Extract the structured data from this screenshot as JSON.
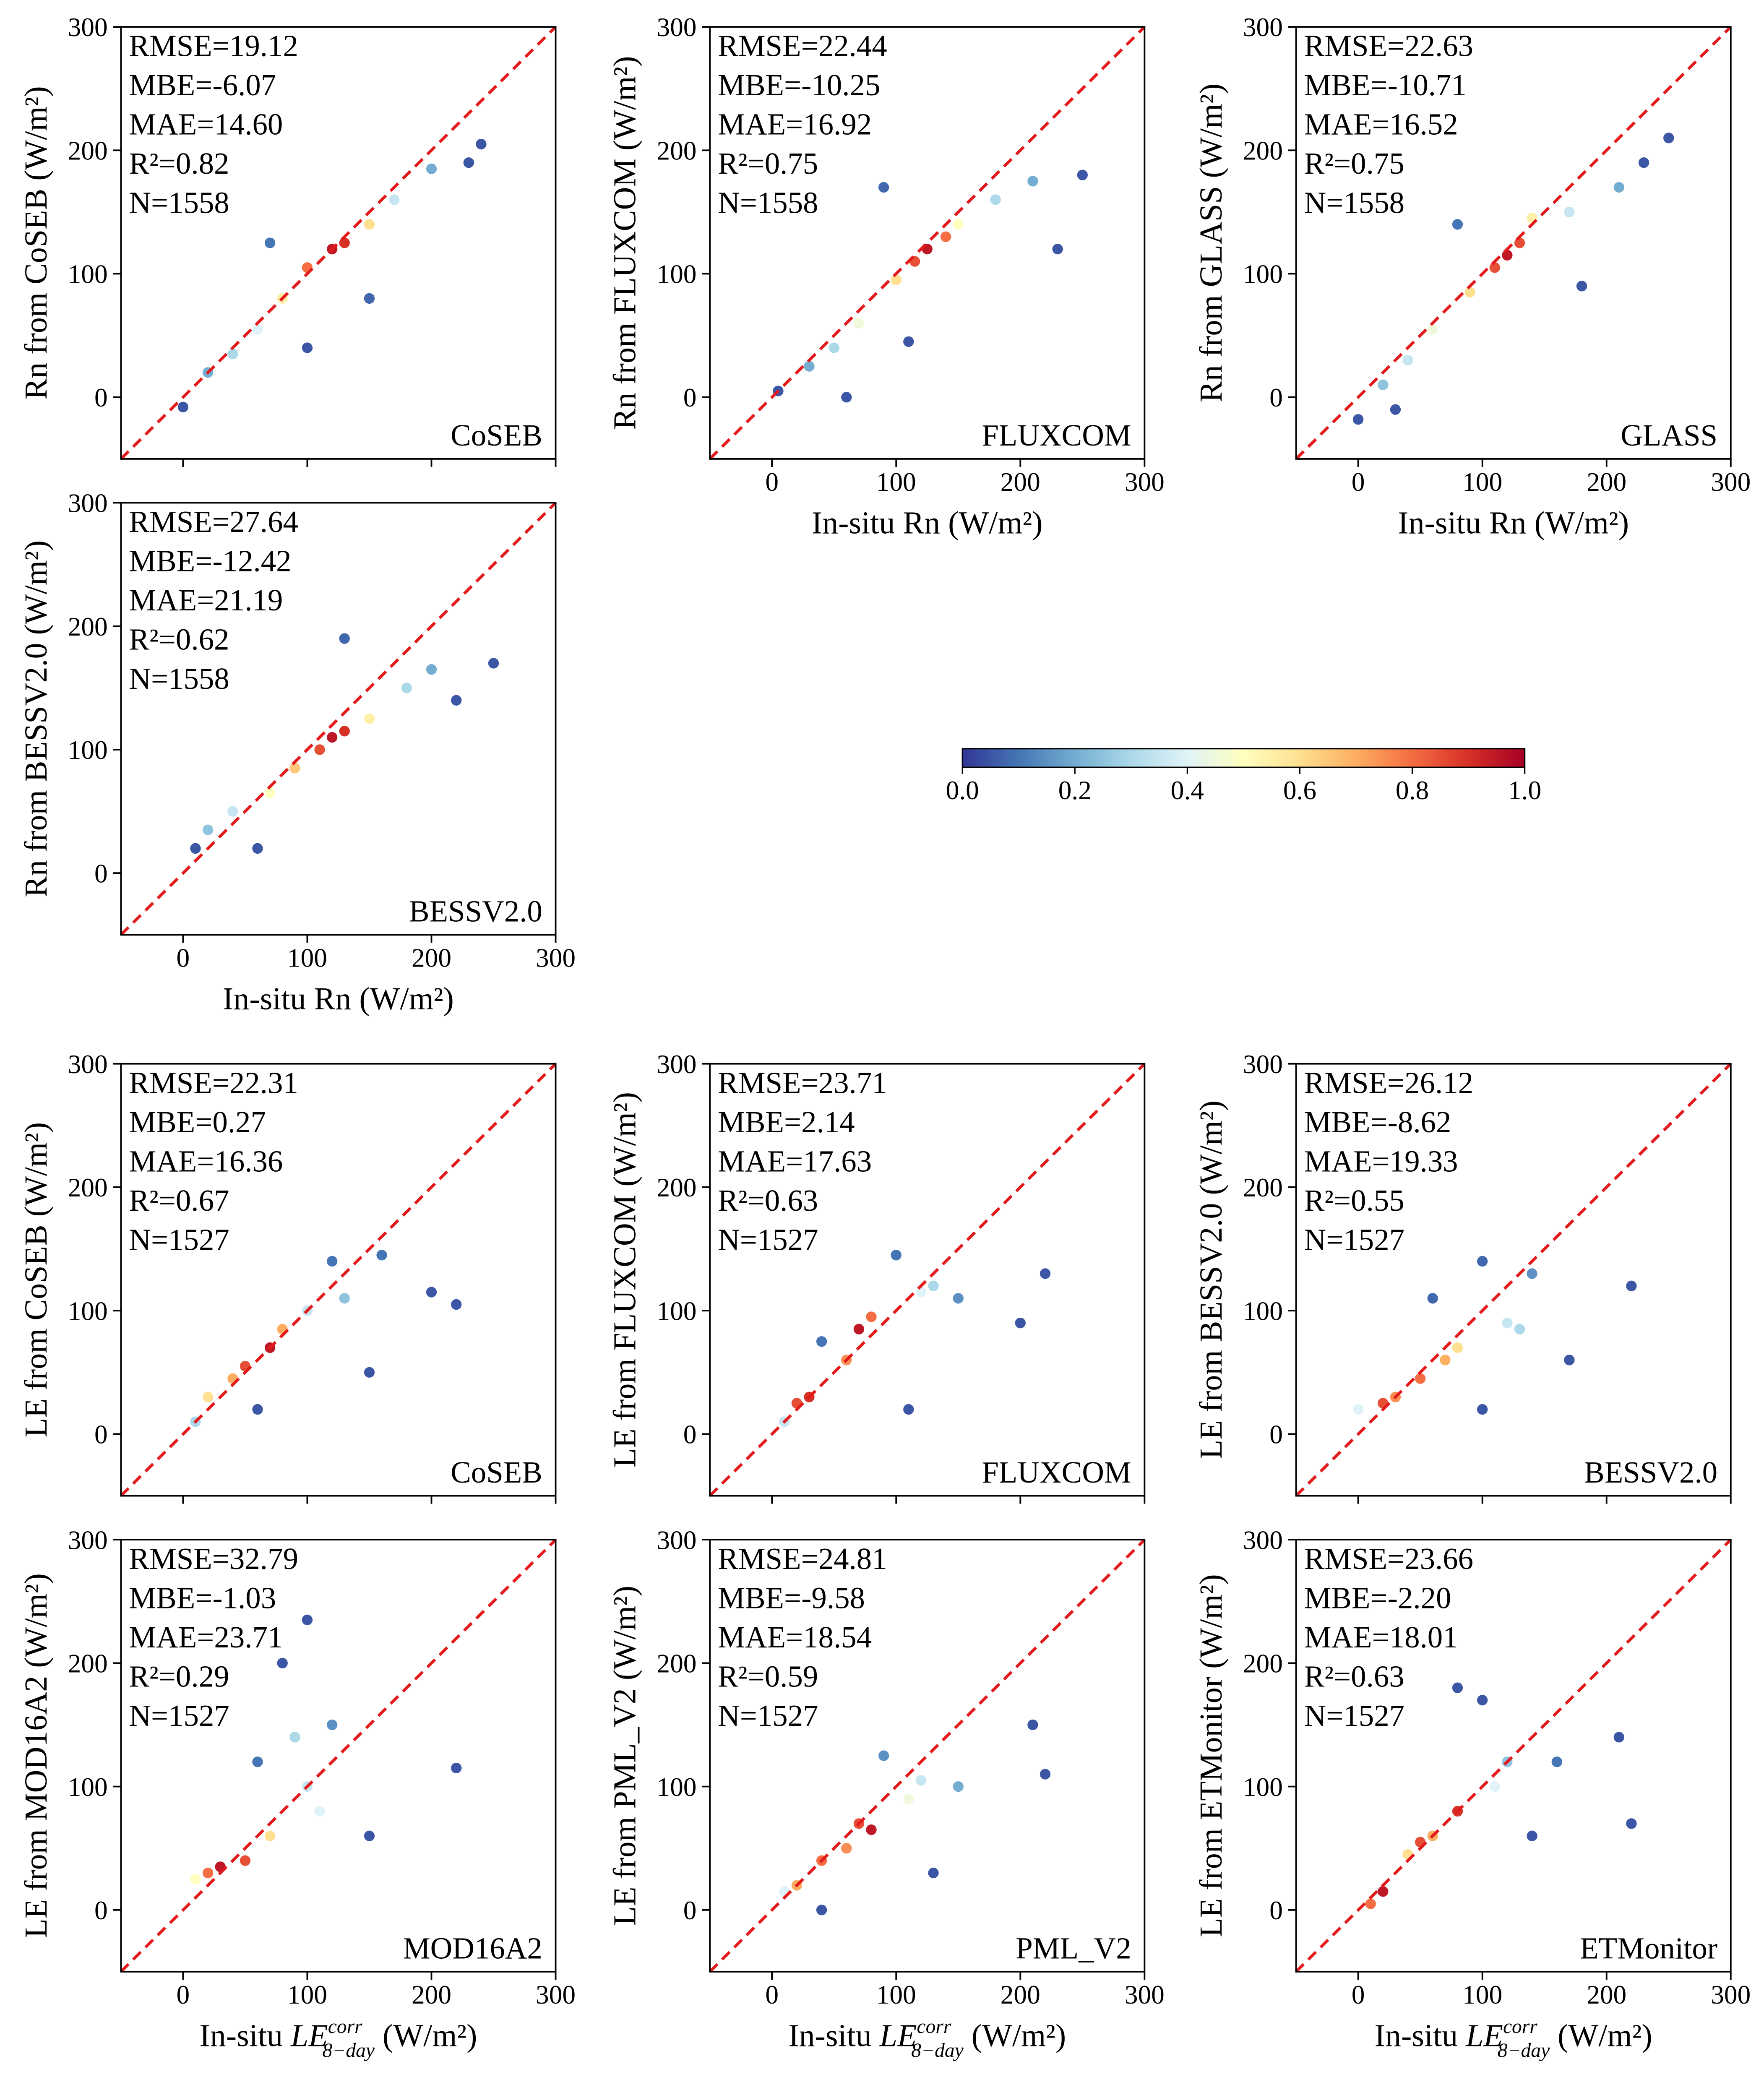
{
  "chart_data": [
    {
      "type": "scatter",
      "ylabel": "Rn from CoSEB (W/m²)",
      "label": "CoSEB",
      "stats": [
        "RMSE=19.12",
        "MBE=-6.07",
        "MAE=14.60",
        "R²=0.82",
        "N=1558"
      ],
      "xlim": [
        -50,
        300
      ],
      "ylim": [
        -50,
        300
      ],
      "xticks": [
        0,
        100,
        200,
        300
      ],
      "yticks": [
        0,
        100,
        200,
        300
      ],
      "xticklabels": false,
      "x": [
        0,
        100,
        150,
        230,
        240,
        70,
        20,
        40,
        170,
        200,
        60,
        80,
        150,
        100,
        120,
        130
      ],
      "y": [
        -8,
        40,
        80,
        190,
        205,
        125,
        20,
        35,
        160,
        185,
        55,
        80,
        140,
        105,
        120,
        125
      ],
      "density": [
        0.05,
        0.05,
        0.08,
        0.05,
        0.05,
        0.1,
        0.2,
        0.3,
        0.35,
        0.2,
        0.4,
        0.55,
        0.6,
        0.8,
        0.95,
        0.9
      ]
    },
    {
      "type": "scatter",
      "ylabel": "Rn from FLUXCOM (W/m²)",
      "xlabel": "In-situ Rn (W/m²)",
      "label": "FLUXCOM",
      "stats": [
        "RMSE=22.44",
        "MBE=-10.25",
        "MAE=16.92",
        "R²=0.75",
        "N=1558"
      ],
      "xlim": [
        -50,
        300
      ],
      "ylim": [
        -50,
        300
      ],
      "xticks": [
        0,
        100,
        200,
        300
      ],
      "yticks": [
        0,
        100,
        200,
        300
      ],
      "xticklabels": true,
      "x": [
        5,
        60,
        110,
        230,
        250,
        90,
        30,
        50,
        180,
        210,
        70,
        100,
        150,
        115,
        125,
        140
      ],
      "y": [
        5,
        0,
        45,
        120,
        180,
        170,
        25,
        40,
        160,
        175,
        60,
        95,
        140,
        110,
        120,
        130
      ],
      "density": [
        0.05,
        0.05,
        0.05,
        0.05,
        0.05,
        0.08,
        0.2,
        0.3,
        0.3,
        0.2,
        0.45,
        0.6,
        0.5,
        0.85,
        0.95,
        0.8
      ]
    },
    {
      "type": "scatter",
      "ylabel": "Rn from GLASS (W/m²)",
      "xlabel": "In-situ Rn (W/m²)",
      "label": "GLASS",
      "stats": [
        "RMSE=22.63",
        "MBE=-10.71",
        "MAE=16.52",
        "R²=0.75",
        "N=1558"
      ],
      "xlim": [
        -50,
        300
      ],
      "ylim": [
        -50,
        300
      ],
      "xticks": [
        0,
        100,
        200,
        300
      ],
      "yticks": [
        0,
        100,
        200,
        300
      ],
      "xticklabels": true,
      "x": [
        0,
        30,
        180,
        250,
        230,
        80,
        20,
        40,
        170,
        210,
        60,
        90,
        140,
        110,
        120,
        130
      ],
      "y": [
        -18,
        -10,
        90,
        210,
        190,
        140,
        10,
        30,
        150,
        170,
        55,
        85,
        145,
        105,
        115,
        125
      ],
      "density": [
        0.05,
        0.05,
        0.05,
        0.05,
        0.05,
        0.1,
        0.25,
        0.35,
        0.35,
        0.2,
        0.45,
        0.6,
        0.55,
        0.85,
        0.95,
        0.85
      ]
    },
    {
      "type": "scatter",
      "ylabel": "Rn from BESSV2.0 (W/m²)",
      "xlabel": "In-situ Rn (W/m²)",
      "label": "BESSV2.0",
      "stats": [
        "RMSE=27.64",
        "MBE=-12.42",
        "MAE=21.19",
        "R²=0.62",
        "N=1558"
      ],
      "xlim": [
        -50,
        300
      ],
      "ylim": [
        -50,
        300
      ],
      "xticks": [
        0,
        100,
        200,
        300
      ],
      "yticks": [
        0,
        100,
        200,
        300
      ],
      "xticklabels": true,
      "x": [
        10,
        60,
        250,
        220,
        130,
        20,
        40,
        180,
        200,
        70,
        90,
        150,
        110,
        120,
        130
      ],
      "y": [
        20,
        20,
        170,
        140,
        190,
        35,
        50,
        150,
        165,
        65,
        85,
        125,
        100,
        110,
        115
      ],
      "density": [
        0.05,
        0.05,
        0.05,
        0.05,
        0.08,
        0.25,
        0.35,
        0.3,
        0.2,
        0.5,
        0.65,
        0.55,
        0.85,
        0.95,
        0.9
      ]
    },
    {
      "type": "scatter",
      "ylabel": "LE from CoSEB (W/m²)",
      "label": "CoSEB",
      "stats": [
        "RMSE=22.31",
        "MBE=0.27",
        "MAE=16.36",
        "R²=0.67",
        "N=1527"
      ],
      "xlim": [
        -50,
        300
      ],
      "ylim": [
        -50,
        300
      ],
      "xticks": [
        0,
        100,
        200,
        300
      ],
      "yticks": [
        0,
        100,
        200,
        300
      ],
      "xticklabels": false,
      "x": [
        220,
        200,
        150,
        60,
        120,
        160,
        10,
        100,
        130,
        40,
        20,
        80,
        50,
        70
      ],
      "y": [
        105,
        115,
        50,
        20,
        140,
        145,
        10,
        100,
        110,
        45,
        30,
        85,
        55,
        70
      ],
      "density": [
        0.05,
        0.05,
        0.05,
        0.05,
        0.1,
        0.1,
        0.3,
        0.35,
        0.25,
        0.7,
        0.6,
        0.7,
        0.85,
        0.95
      ]
    },
    {
      "type": "scatter",
      "ylabel": "LE from FLUXCOM (W/m²)",
      "label": "FLUXCOM",
      "stats": [
        "RMSE=23.71",
        "MBE=2.14",
        "MAE=17.63",
        "R²=0.63",
        "N=1527"
      ],
      "xlim": [
        -50,
        300
      ],
      "ylim": [
        -50,
        300
      ],
      "xticks": [
        0,
        100,
        200,
        300
      ],
      "yticks": [
        0,
        100,
        200,
        300
      ],
      "xticklabels": false,
      "x": [
        220,
        200,
        110,
        40,
        100,
        150,
        10,
        120,
        130,
        60,
        20,
        80,
        30,
        70
      ],
      "y": [
        130,
        90,
        20,
        75,
        145,
        110,
        10,
        115,
        120,
        60,
        25,
        95,
        30,
        85
      ],
      "density": [
        0.05,
        0.05,
        0.05,
        0.1,
        0.1,
        0.15,
        0.35,
        0.4,
        0.3,
        0.75,
        0.85,
        0.8,
        0.9,
        0.95
      ]
    },
    {
      "type": "scatter",
      "ylabel": "LE from BESSV2.0 (W/m²)",
      "label": "BESSV2.0",
      "stats": [
        "RMSE=26.12",
        "MBE=-8.62",
        "MAE=19.33",
        "R²=0.55",
        "N=1527"
      ],
      "xlim": [
        -50,
        300
      ],
      "ylim": [
        -50,
        300
      ],
      "xticks": [
        0,
        100,
        200,
        300
      ],
      "yticks": [
        0,
        100,
        200,
        300
      ],
      "xticklabels": false,
      "x": [
        220,
        170,
        100,
        60,
        100,
        140,
        0,
        120,
        130,
        30,
        20,
        80,
        50,
        70
      ],
      "y": [
        120,
        60,
        20,
        110,
        140,
        130,
        20,
        90,
        85,
        30,
        25,
        70,
        45,
        60
      ],
      "density": [
        0.05,
        0.05,
        0.05,
        0.08,
        0.08,
        0.15,
        0.4,
        0.35,
        0.3,
        0.75,
        0.85,
        0.6,
        0.8,
        0.7
      ]
    },
    {
      "type": "scatter",
      "ylabel": "LE from MOD16A2 (W/m²)",
      "xlabel": {
        "prefix": "In-situ ",
        "symbol": "LE",
        "sub": "8−day",
        "sup": "corr",
        "suffix": " (W/m²)"
      },
      "label": "MOD16A2",
      "stats": [
        "RMSE=32.79",
        "MBE=-1.03",
        "MAE=23.71",
        "R²=0.29",
        "N=1527"
      ],
      "xlim": [
        -50,
        300
      ],
      "ylim": [
        -50,
        300
      ],
      "xticks": [
        0,
        100,
        200,
        300
      ],
      "yticks": [
        0,
        100,
        200,
        300
      ],
      "xticklabels": true,
      "x": [
        220,
        100,
        80,
        150,
        60,
        120,
        90,
        100,
        110,
        70,
        10,
        50,
        20,
        30
      ],
      "y": [
        115,
        235,
        200,
        60,
        120,
        150,
        140,
        100,
        80,
        60,
        25,
        40,
        30,
        35
      ],
      "density": [
        0.05,
        0.05,
        0.05,
        0.05,
        0.1,
        0.15,
        0.3,
        0.35,
        0.4,
        0.6,
        0.5,
        0.85,
        0.8,
        0.95
      ]
    },
    {
      "type": "scatter",
      "ylabel": "LE from PML_V2 (W/m²)",
      "xlabel": {
        "prefix": "In-situ ",
        "symbol": "LE",
        "sub": "8−day",
        "sup": "corr",
        "suffix": " (W/m²)"
      },
      "label": "PML_V2",
      "stats": [
        "RMSE=24.81",
        "MBE=-9.58",
        "MAE=18.54",
        "R²=0.59",
        "N=1527"
      ],
      "xlim": [
        -50,
        300
      ],
      "ylim": [
        -50,
        300
      ],
      "xticks": [
        0,
        100,
        200,
        300
      ],
      "yticks": [
        0,
        100,
        200,
        300
      ],
      "xticklabels": true,
      "x": [
        220,
        210,
        130,
        40,
        90,
        150,
        10,
        120,
        110,
        60,
        20,
        70,
        40,
        80
      ],
      "y": [
        110,
        150,
        30,
        0,
        125,
        100,
        15,
        105,
        90,
        50,
        20,
        70,
        40,
        65
      ],
      "density": [
        0.05,
        0.05,
        0.05,
        0.05,
        0.15,
        0.2,
        0.4,
        0.35,
        0.45,
        0.75,
        0.7,
        0.85,
        0.8,
        0.95
      ]
    },
    {
      "type": "scatter",
      "ylabel": "LE from ETMonitor (W/m²)",
      "xlabel": {
        "prefix": "In-situ ",
        "symbol": "LE",
        "sub": "8−day",
        "sup": "corr",
        "suffix": " (W/m²)"
      },
      "label": "ETMonitor",
      "stats": [
        "RMSE=23.66",
        "MBE=-2.20",
        "MAE=18.01",
        "R²=0.63",
        "N=1527"
      ],
      "xlim": [
        -50,
        300
      ],
      "ylim": [
        -50,
        300
      ],
      "xticks": [
        0,
        100,
        200,
        300
      ],
      "yticks": [
        0,
        100,
        200,
        300
      ],
      "xticklabels": true,
      "x": [
        220,
        210,
        140,
        80,
        100,
        160,
        120,
        110,
        40,
        60,
        10,
        50,
        20,
        80
      ],
      "y": [
        70,
        140,
        60,
        180,
        170,
        120,
        120,
        100,
        45,
        60,
        5,
        55,
        15,
        80
      ],
      "density": [
        0.05,
        0.05,
        0.05,
        0.05,
        0.05,
        0.1,
        0.25,
        0.4,
        0.6,
        0.7,
        0.8,
        0.85,
        0.95,
        0.9
      ]
    }
  ],
  "colorbar": {
    "lim": [
      0,
      1
    ],
    "ticks": [
      {
        "value": 0,
        "label": "0.0"
      },
      {
        "value": 0.2,
        "label": "0.2"
      },
      {
        "value": 0.4,
        "label": "0.4"
      },
      {
        "value": 0.6,
        "label": "0.6"
      },
      {
        "value": 0.8,
        "label": "0.8"
      },
      {
        "value": 1,
        "label": "1.0"
      }
    ],
    "colors": [
      "#313695",
      "#4575b4",
      "#74add1",
      "#abd9e9",
      "#e0f3f8",
      "#ffffbf",
      "#fee090",
      "#fdae61",
      "#f46d43",
      "#d73027",
      "#a50026"
    ]
  }
}
